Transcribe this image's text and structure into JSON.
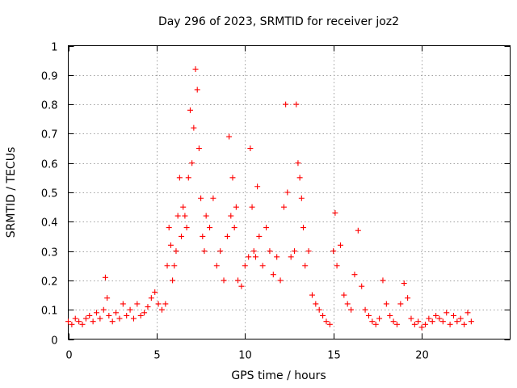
{
  "chart_data": {
    "type": "scatter",
    "title": "Day 296 of 2023, SRMTID for receiver joz2",
    "xlabel": "GPS time / hours",
    "ylabel": "SRMTID / TECUs",
    "xlim": [
      0,
      25
    ],
    "ylim": [
      0,
      1
    ],
    "x_ticks": [
      0,
      5,
      10,
      15,
      20
    ],
    "x_tick_labels": [
      "0",
      "5",
      "10",
      "15",
      "20"
    ],
    "y_ticks": [
      0,
      0.1,
      0.2,
      0.3,
      0.4,
      0.5,
      0.6,
      0.7,
      0.8,
      0.9,
      1
    ],
    "y_tick_labels": [
      "0",
      "0.1",
      "0.2",
      "0.3",
      "0.4",
      "0.5",
      "0.6",
      "0.7",
      "0.8",
      "0.9",
      "1"
    ],
    "grid": true,
    "marker": "plus",
    "marker_color": "#ff0000",
    "series": [
      {
        "name": "SRMTID",
        "points": [
          [
            0.0,
            0.06
          ],
          [
            0.2,
            0.05
          ],
          [
            0.4,
            0.07
          ],
          [
            0.6,
            0.06
          ],
          [
            0.8,
            0.05
          ],
          [
            1.0,
            0.07
          ],
          [
            1.2,
            0.08
          ],
          [
            1.4,
            0.06
          ],
          [
            1.6,
            0.09
          ],
          [
            1.8,
            0.07
          ],
          [
            2.0,
            0.1
          ],
          [
            2.1,
            0.21
          ],
          [
            2.2,
            0.14
          ],
          [
            2.3,
            0.08
          ],
          [
            2.5,
            0.06
          ],
          [
            2.7,
            0.09
          ],
          [
            2.9,
            0.07
          ],
          [
            3.1,
            0.12
          ],
          [
            3.3,
            0.08
          ],
          [
            3.5,
            0.1
          ],
          [
            3.7,
            0.07
          ],
          [
            3.9,
            0.12
          ],
          [
            4.1,
            0.08
          ],
          [
            4.3,
            0.09
          ],
          [
            4.5,
            0.11
          ],
          [
            4.7,
            0.14
          ],
          [
            4.9,
            0.16
          ],
          [
            5.1,
            0.12
          ],
          [
            5.3,
            0.1
          ],
          [
            5.5,
            0.12
          ],
          [
            5.6,
            0.25
          ],
          [
            5.7,
            0.38
          ],
          [
            5.8,
            0.32
          ],
          [
            5.9,
            0.2
          ],
          [
            6.0,
            0.25
          ],
          [
            6.1,
            0.3
          ],
          [
            6.2,
            0.42
          ],
          [
            6.3,
            0.55
          ],
          [
            6.4,
            0.35
          ],
          [
            6.5,
            0.45
          ],
          [
            6.6,
            0.42
          ],
          [
            6.7,
            0.38
          ],
          [
            6.8,
            0.55
          ],
          [
            6.9,
            0.78
          ],
          [
            7.0,
            0.6
          ],
          [
            7.1,
            0.72
          ],
          [
            7.2,
            0.92
          ],
          [
            7.3,
            0.85
          ],
          [
            7.4,
            0.65
          ],
          [
            7.5,
            0.48
          ],
          [
            7.6,
            0.35
          ],
          [
            7.7,
            0.3
          ],
          [
            7.8,
            0.42
          ],
          [
            8.0,
            0.38
          ],
          [
            8.2,
            0.48
          ],
          [
            8.4,
            0.25
          ],
          [
            8.6,
            0.3
          ],
          [
            8.8,
            0.2
          ],
          [
            9.0,
            0.35
          ],
          [
            9.1,
            0.69
          ],
          [
            9.2,
            0.42
          ],
          [
            9.3,
            0.55
          ],
          [
            9.4,
            0.38
          ],
          [
            9.5,
            0.45
          ],
          [
            9.6,
            0.2
          ],
          [
            9.8,
            0.18
          ],
          [
            10.0,
            0.25
          ],
          [
            10.2,
            0.28
          ],
          [
            10.3,
            0.65
          ],
          [
            10.4,
            0.45
          ],
          [
            10.5,
            0.3
          ],
          [
            10.6,
            0.28
          ],
          [
            10.7,
            0.52
          ],
          [
            10.8,
            0.35
          ],
          [
            11.0,
            0.25
          ],
          [
            11.2,
            0.38
          ],
          [
            11.4,
            0.3
          ],
          [
            11.6,
            0.22
          ],
          [
            11.8,
            0.28
          ],
          [
            12.0,
            0.2
          ],
          [
            12.2,
            0.45
          ],
          [
            12.3,
            0.8
          ],
          [
            12.4,
            0.5
          ],
          [
            12.6,
            0.28
          ],
          [
            12.8,
            0.3
          ],
          [
            12.9,
            0.8
          ],
          [
            13.0,
            0.6
          ],
          [
            13.1,
            0.55
          ],
          [
            13.2,
            0.48
          ],
          [
            13.3,
            0.38
          ],
          [
            13.4,
            0.25
          ],
          [
            13.6,
            0.3
          ],
          [
            13.8,
            0.15
          ],
          [
            14.0,
            0.12
          ],
          [
            14.2,
            0.1
          ],
          [
            14.4,
            0.08
          ],
          [
            14.6,
            0.06
          ],
          [
            14.8,
            0.05
          ],
          [
            15.0,
            0.3
          ],
          [
            15.1,
            0.43
          ],
          [
            15.2,
            0.25
          ],
          [
            15.4,
            0.32
          ],
          [
            15.6,
            0.15
          ],
          [
            15.8,
            0.12
          ],
          [
            16.0,
            0.1
          ],
          [
            16.2,
            0.22
          ],
          [
            16.4,
            0.37
          ],
          [
            16.6,
            0.18
          ],
          [
            16.8,
            0.1
          ],
          [
            17.0,
            0.08
          ],
          [
            17.2,
            0.06
          ],
          [
            17.4,
            0.05
          ],
          [
            17.6,
            0.07
          ],
          [
            17.8,
            0.2
          ],
          [
            18.0,
            0.12
          ],
          [
            18.2,
            0.08
          ],
          [
            18.4,
            0.06
          ],
          [
            18.6,
            0.05
          ],
          [
            18.8,
            0.12
          ],
          [
            19.0,
            0.19
          ],
          [
            19.2,
            0.14
          ],
          [
            19.4,
            0.07
          ],
          [
            19.6,
            0.05
          ],
          [
            19.8,
            0.06
          ],
          [
            20.0,
            0.04
          ],
          [
            20.2,
            0.05
          ],
          [
            20.4,
            0.07
          ],
          [
            20.6,
            0.06
          ],
          [
            20.8,
            0.08
          ],
          [
            21.0,
            0.07
          ],
          [
            21.2,
            0.06
          ],
          [
            21.4,
            0.09
          ],
          [
            21.6,
            0.05
          ],
          [
            21.8,
            0.08
          ],
          [
            22.0,
            0.06
          ],
          [
            22.2,
            0.07
          ],
          [
            22.4,
            0.05
          ],
          [
            22.6,
            0.09
          ],
          [
            22.8,
            0.06
          ]
        ]
      }
    ]
  }
}
